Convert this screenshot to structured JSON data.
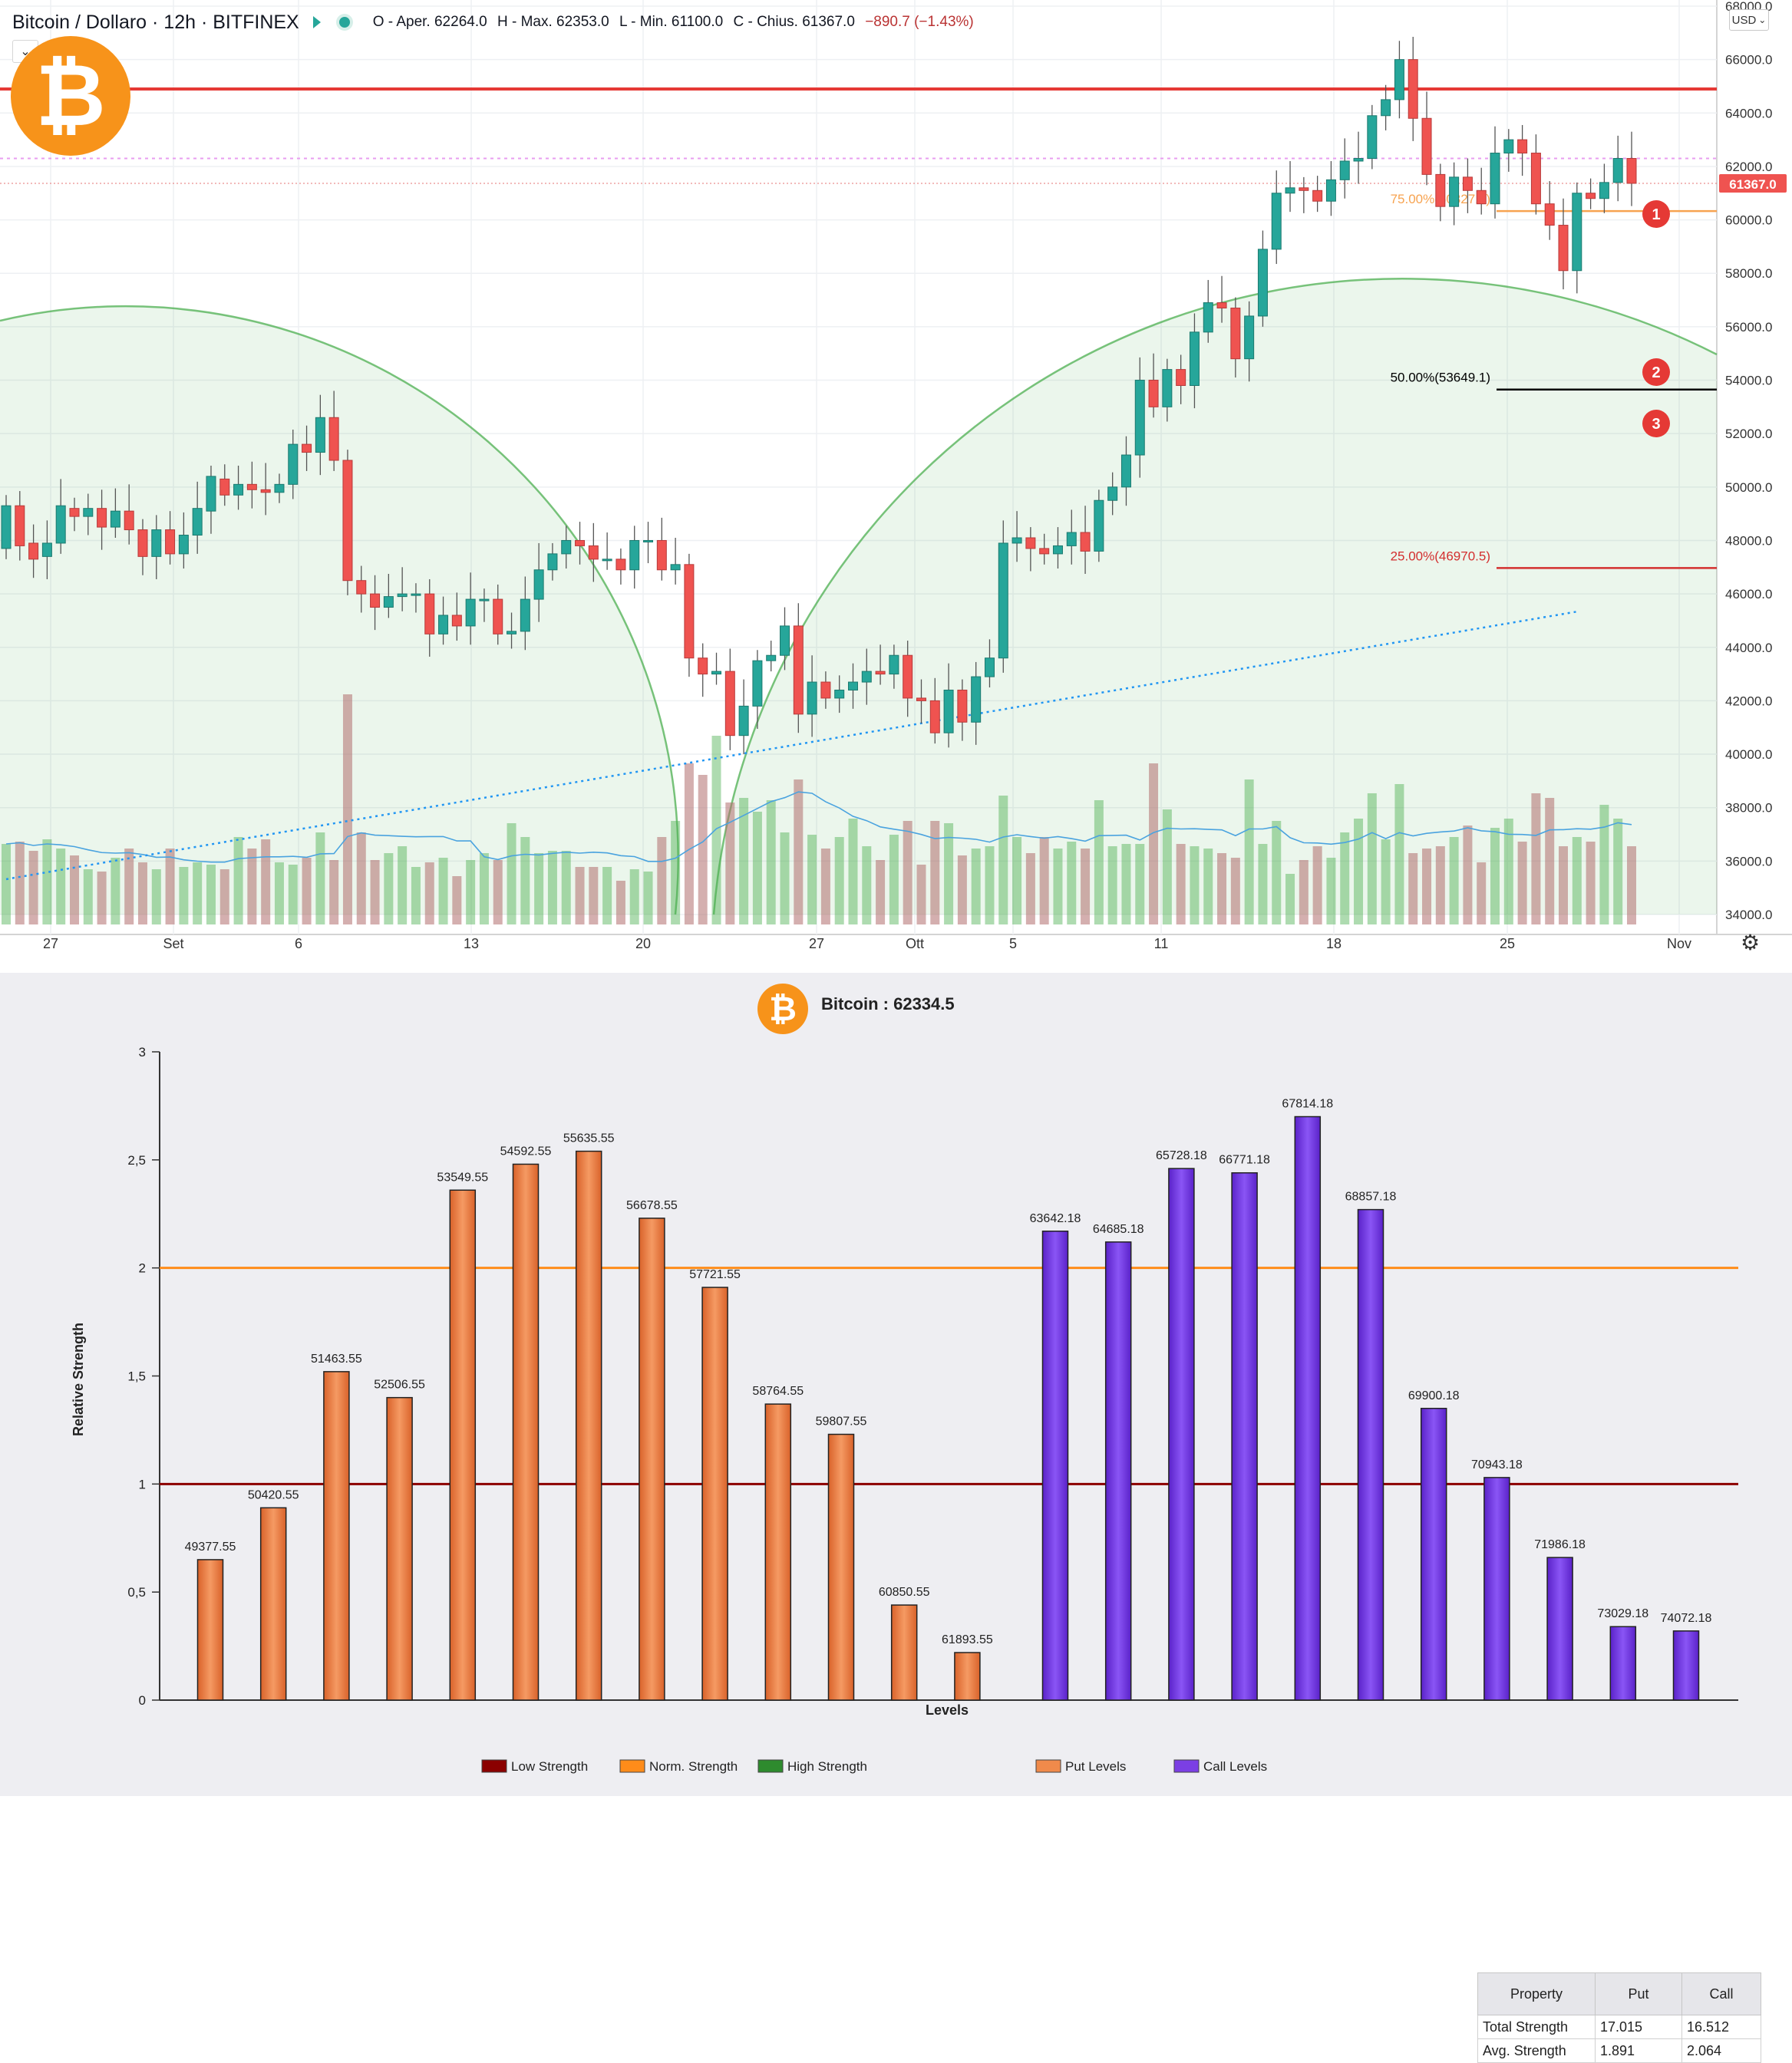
{
  "top": {
    "symbol": "Bitcoin / Dollaro · 12h · BITFINEX",
    "ohlc_open": "O - Aper. 62264.0",
    "ohlc_high": "H - Max. 62353.0",
    "ohlc_low": "L - Min. 61100.0",
    "ohlc_close": "C - Chius. 61367.0",
    "ohlc_change": "−890.7 (−1.43%)",
    "currency": "USD",
    "price_tag": "61367.0",
    "price_ticks": [
      "68000.0",
      "66000.0",
      "64000.0",
      "62000.0",
      "60000.0",
      "58000.0",
      "56000.0",
      "54000.0",
      "52000.0",
      "50000.0",
      "48000.0",
      "46000.0",
      "44000.0",
      "42000.0",
      "40000.0",
      "38000.0",
      "36000.0",
      "34000.0"
    ],
    "date_ticks": [
      "27",
      "Set",
      "6",
      "13",
      "20",
      "27",
      "Ott",
      "5",
      "11",
      "18",
      "25",
      "Nov"
    ],
    "fib_75": "75.00%(60327.7)",
    "fib_50": "50.00%(53649.1)",
    "fib_25": "25.00%(46970.5)",
    "markers": [
      "1",
      "2",
      "3"
    ],
    "icons": [
      "bitcoin-logo-icon",
      "flag-icon",
      "dot-icon",
      "chevron-down-icon",
      "settings-gear-icon"
    ],
    "colors": {
      "resistance": "#e53935",
      "up": "#26a69a",
      "down": "#ef5350",
      "fib75": "#f7a350",
      "fib50": "#000000",
      "fib25": "#d32f2f",
      "arc": "#4caf50",
      "marker": "#e53935"
    }
  },
  "bottom": {
    "title": "Bitcoin : 62334.5",
    "table": {
      "headers": [
        "Property",
        "Put",
        "Call"
      ],
      "rows": [
        [
          "Total Strength",
          "17.015",
          "16.512"
        ],
        [
          "Avg. Strength",
          "1.891",
          "2.064"
        ]
      ]
    },
    "legend": [
      "Low Strength",
      "Norm. Strength",
      "High Strength",
      "Put Levels",
      "Call Levels"
    ],
    "legend_colors": [
      "#8b0000",
      "#ff8c1a",
      "#2e8b2e",
      "#f08a4b",
      "#7b3fe4"
    ]
  },
  "chart_data": [
    {
      "type": "candlestick",
      "title": "Bitcoin / Dollaro · 12h · BITFINEX",
      "ylim": [
        34000,
        68000
      ],
      "x_ticks": [
        "27",
        "Set",
        "6",
        "13",
        "20",
        "27",
        "Ott",
        "5",
        "11",
        "18",
        "25",
        "Nov"
      ],
      "last_close": 61367.0,
      "horizontal_levels": [
        64900,
        62300,
        60327.7,
        53649.1,
        46970.5
      ],
      "fibonacci": [
        {
          "label": "75.00%",
          "value": 60327.7
        },
        {
          "label": "50.00%",
          "value": 53649.1
        },
        {
          "label": "25.00%",
          "value": 46970.5
        }
      ],
      "candles": [
        {
          "o": 47700,
          "c": 49300
        },
        {
          "o": 49300,
          "c": 47800
        },
        {
          "o": 47900,
          "c": 47300
        },
        {
          "o": 47400,
          "c": 47900
        },
        {
          "o": 47900,
          "c": 49300
        },
        {
          "o": 49200,
          "c": 48900
        },
        {
          "o": 48900,
          "c": 49200
        },
        {
          "o": 49200,
          "c": 48500
        },
        {
          "o": 48500,
          "c": 49100
        },
        {
          "o": 49100,
          "c": 48400
        },
        {
          "o": 48400,
          "c": 47400
        },
        {
          "o": 47400,
          "c": 48400
        },
        {
          "o": 48400,
          "c": 47500
        },
        {
          "o": 47500,
          "c": 48200
        },
        {
          "o": 48200,
          "c": 49200
        },
        {
          "o": 49100,
          "c": 50400
        },
        {
          "o": 50300,
          "c": 49700
        },
        {
          "o": 49700,
          "c": 50100
        },
        {
          "o": 50100,
          "c": 49900
        },
        {
          "o": 49900,
          "c": 49800
        },
        {
          "o": 49800,
          "c": 50100
        },
        {
          "o": 50100,
          "c": 51600
        },
        {
          "o": 51600,
          "c": 51300
        },
        {
          "o": 51300,
          "c": 52600
        },
        {
          "o": 52600,
          "c": 51000
        },
        {
          "o": 51000,
          "c": 46500
        },
        {
          "o": 46500,
          "c": 46000
        },
        {
          "o": 46000,
          "c": 45500
        },
        {
          "o": 45500,
          "c": 45900
        },
        {
          "o": 45900,
          "c": 46000
        },
        {
          "o": 46000,
          "c": 46000
        },
        {
          "o": 46000,
          "c": 44500
        },
        {
          "o": 44500,
          "c": 45200
        },
        {
          "o": 45200,
          "c": 44800
        },
        {
          "o": 44800,
          "c": 45800
        },
        {
          "o": 45800,
          "c": 45800
        },
        {
          "o": 45800,
          "c": 44500
        },
        {
          "o": 44500,
          "c": 44600
        },
        {
          "o": 44600,
          "c": 45800
        },
        {
          "o": 45800,
          "c": 46900
        },
        {
          "o": 46900,
          "c": 47500
        },
        {
          "o": 47500,
          "c": 48000
        },
        {
          "o": 48000,
          "c": 47800
        },
        {
          "o": 47800,
          "c": 47300
        },
        {
          "o": 47300,
          "c": 47300
        },
        {
          "o": 47300,
          "c": 46900
        },
        {
          "o": 46900,
          "c": 48000
        },
        {
          "o": 48000,
          "c": 48000
        },
        {
          "o": 48000,
          "c": 46900
        },
        {
          "o": 46900,
          "c": 47100
        },
        {
          "o": 47100,
          "c": 43600
        },
        {
          "o": 43600,
          "c": 43000
        },
        {
          "o": 43000,
          "c": 43100
        },
        {
          "o": 43100,
          "c": 40700
        },
        {
          "o": 40700,
          "c": 41800
        },
        {
          "o": 41800,
          "c": 43500
        },
        {
          "o": 43500,
          "c": 43700
        },
        {
          "o": 43700,
          "c": 44800
        },
        {
          "o": 44800,
          "c": 41500
        },
        {
          "o": 41500,
          "c": 42700
        },
        {
          "o": 42700,
          "c": 42100
        },
        {
          "o": 42100,
          "c": 42400
        },
        {
          "o": 42400,
          "c": 42700
        },
        {
          "o": 42700,
          "c": 43100
        },
        {
          "o": 43100,
          "c": 43000
        },
        {
          "o": 43000,
          "c": 43700
        },
        {
          "o": 43700,
          "c": 42100
        },
        {
          "o": 42100,
          "c": 42000
        },
        {
          "o": 42000,
          "c": 40800
        },
        {
          "o": 40800,
          "c": 42400
        },
        {
          "o": 42400,
          "c": 41200
        },
        {
          "o": 41200,
          "c": 42900
        },
        {
          "o": 42900,
          "c": 43600
        },
        {
          "o": 43600,
          "c": 47900
        },
        {
          "o": 47900,
          "c": 48100
        },
        {
          "o": 48100,
          "c": 47700
        },
        {
          "o": 47700,
          "c": 47500
        },
        {
          "o": 47500,
          "c": 47800
        },
        {
          "o": 47800,
          "c": 48300
        },
        {
          "o": 48300,
          "c": 47600
        },
        {
          "o": 47600,
          "c": 49500
        },
        {
          "o": 49500,
          "c": 50000
        },
        {
          "o": 50000,
          "c": 51200
        },
        {
          "o": 51200,
          "c": 54000
        },
        {
          "o": 54000,
          "c": 53000
        },
        {
          "o": 53000,
          "c": 54400
        },
        {
          "o": 54400,
          "c": 53800
        },
        {
          "o": 53800,
          "c": 55800
        },
        {
          "o": 55800,
          "c": 56900
        },
        {
          "o": 56900,
          "c": 56700
        },
        {
          "o": 56700,
          "c": 54800
        },
        {
          "o": 54800,
          "c": 56400
        },
        {
          "o": 56400,
          "c": 58900
        },
        {
          "o": 58900,
          "c": 61000
        },
        {
          "o": 61000,
          "c": 61200
        },
        {
          "o": 61200,
          "c": 61100
        },
        {
          "o": 61100,
          "c": 60700
        },
        {
          "o": 60700,
          "c": 61500
        },
        {
          "o": 61500,
          "c": 62200
        },
        {
          "o": 62200,
          "c": 62300
        },
        {
          "o": 62300,
          "c": 63900
        },
        {
          "o": 63900,
          "c": 64500
        },
        {
          "o": 64500,
          "c": 66000
        },
        {
          "o": 66000,
          "c": 63800
        },
        {
          "o": 63800,
          "c": 61700
        },
        {
          "o": 61700,
          "c": 60500
        },
        {
          "o": 60500,
          "c": 61600
        },
        {
          "o": 61600,
          "c": 61100
        },
        {
          "o": 61100,
          "c": 60600
        },
        {
          "o": 60600,
          "c": 62500
        },
        {
          "o": 62500,
          "c": 63000
        },
        {
          "o": 63000,
          "c": 62500
        },
        {
          "o": 62500,
          "c": 60600
        },
        {
          "o": 60600,
          "c": 59800
        },
        {
          "o": 59800,
          "c": 58100
        },
        {
          "o": 58100,
          "c": 61000
        },
        {
          "o": 61000,
          "c": 60800
        },
        {
          "o": 60800,
          "c": 61400
        },
        {
          "o": 61400,
          "c": 62300
        },
        {
          "o": 62300,
          "c": 61367
        }
      ],
      "volume": [
        0.35,
        0.36,
        0.32,
        0.37,
        0.33,
        0.3,
        0.24,
        0.23,
        0.29,
        0.33,
        0.27,
        0.24,
        0.33,
        0.25,
        0.27,
        0.26,
        0.24,
        0.38,
        0.33,
        0.37,
        0.27,
        0.26,
        0.29,
        0.4,
        0.28,
        1.0,
        0.4,
        0.28,
        0.31,
        0.34,
        0.25,
        0.27,
        0.29,
        0.21,
        0.28,
        0.31,
        0.28,
        0.44,
        0.38,
        0.31,
        0.32,
        0.32,
        0.25,
        0.25,
        0.25,
        0.19,
        0.24,
        0.23,
        0.38,
        0.45,
        0.7,
        0.65,
        0.82,
        0.53,
        0.55,
        0.49,
        0.54,
        0.4,
        0.63,
        0.39,
        0.33,
        0.38,
        0.46,
        0.34,
        0.28,
        0.39,
        0.45,
        0.26,
        0.45,
        0.44,
        0.3,
        0.33,
        0.34,
        0.56,
        0.38,
        0.31,
        0.38,
        0.33,
        0.36,
        0.33,
        0.54,
        0.34,
        0.35,
        0.35,
        0.7,
        0.5,
        0.35,
        0.34,
        0.33,
        0.31,
        0.29,
        0.63,
        0.35,
        0.45,
        0.22,
        0.28,
        0.34,
        0.29,
        0.4,
        0.46,
        0.57,
        0.37,
        0.61,
        0.31,
        0.33,
        0.34,
        0.38,
        0.43,
        0.27,
        0.42,
        0.46,
        0.36,
        0.57,
        0.55,
        0.34,
        0.38,
        0.36,
        0.52,
        0.46,
        0.34
      ],
      "volume_ma_note": "",
      "series_colors": {
        "up": "#26a69a",
        "down": "#ef5350"
      }
    },
    {
      "type": "bar",
      "title": "Bitcoin : 62334.5",
      "xlabel": "Levels",
      "ylabel": "Relative Strength",
      "ylim": [
        0,
        3
      ],
      "y_ticks": [
        "0",
        "0,5",
        "1",
        "1,5",
        "2",
        "2,5",
        "3"
      ],
      "reference_lines": [
        {
          "name": "Low Strength",
          "value": 1
        },
        {
          "name": "Norm. Strength",
          "value": 2
        }
      ],
      "series": [
        {
          "name": "Put Levels",
          "categories": [
            "49377.55",
            "50420.55",
            "51463.55",
            "52506.55",
            "53549.55",
            "54592.55",
            "55635.55",
            "56678.55",
            "57721.55",
            "58764.55",
            "59807.55",
            "60850.55",
            "61893.55"
          ],
          "values": [
            0.65,
            0.89,
            1.52,
            1.4,
            2.36,
            2.48,
            2.54,
            2.23,
            1.91,
            1.37,
            1.23,
            0.44,
            0.22
          ]
        },
        {
          "name": "Call Levels",
          "categories": [
            "63642.18",
            "64685.18",
            "65728.18",
            "66771.18",
            "67814.18",
            "68857.18",
            "69900.18",
            "70943.18",
            "71986.18",
            "73029.18",
            "74072.18"
          ],
          "values": [
            2.17,
            2.12,
            2.46,
            2.44,
            2.7,
            2.27,
            1.35,
            1.03,
            0.66,
            0.34,
            0.32
          ]
        }
      ]
    }
  ]
}
